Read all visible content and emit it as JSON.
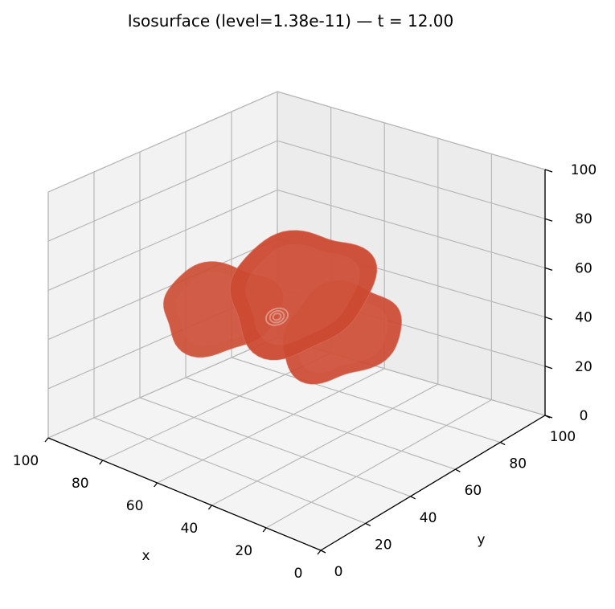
{
  "chart_data": {
    "type": "isosurface-3d",
    "title": "Isosurface (level=1.38e-11) — t = 12.00",
    "xlabel": "x",
    "ylabel": "y",
    "zlabel": "",
    "xlim": [
      0,
      100
    ],
    "ylim": [
      0,
      100
    ],
    "zlim": [
      0,
      100
    ],
    "x_ticks": [
      "0",
      "20",
      "40",
      "60",
      "80",
      "100"
    ],
    "y_ticks": [
      "0",
      "20",
      "40",
      "60",
      "80",
      "100"
    ],
    "z_ticks": [
      "0",
      "20",
      "40",
      "60",
      "80",
      "100"
    ],
    "grid": true,
    "view": "default 3D perspective (x increasing toward viewer-left, y increasing toward viewer-right)",
    "surface_color": "#cc4a32",
    "surface_edge_color": "#d9705c",
    "pane_colors": {
      "left": "#f2f2f2",
      "right": "#ececec",
      "floor": "#f4f4f4"
    },
    "grid_color": "#b8b8b8",
    "surface_description": "three overlapping lobes roughly centered near x=50, y=50, z=50"
  }
}
